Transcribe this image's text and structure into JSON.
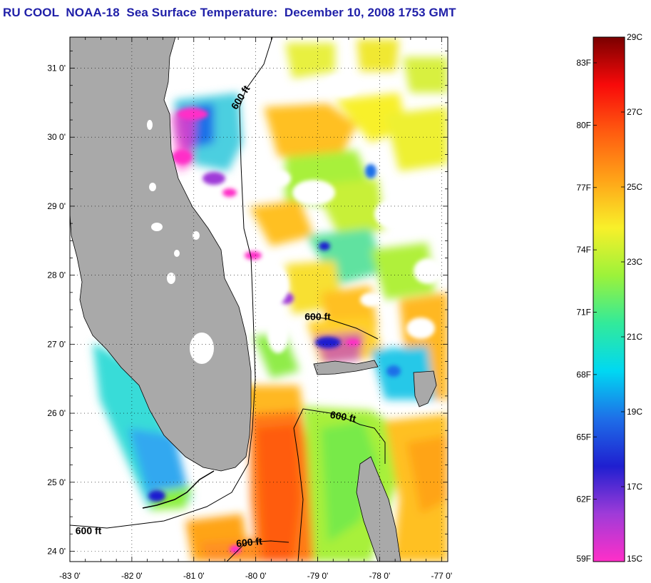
{
  "title": "RU COOL  NOAA-18  Sea Surface Temperature:  December 10, 2008 1753 GMT",
  "colors": {
    "title": "#1f1fa8",
    "land": "#a9a9a9",
    "cloud": "#ffffff"
  },
  "map": {
    "lon_range": [
      -83.0,
      -76.9
    ],
    "lat_range": [
      23.85,
      31.45
    ],
    "grid": "dotted",
    "lat_labels": [
      "31 0'",
      "30 0'",
      "29 0'",
      "28 0'",
      "27 0'",
      "26 0'",
      "25 0'",
      "24 0'"
    ],
    "lat_values": [
      31,
      30,
      29,
      28,
      27,
      26,
      25,
      24
    ],
    "lon_labels": [
      "-83 0'",
      "-82 0'",
      "-81 0'",
      "-80 0'",
      "-79 0'",
      "-78 0'",
      "-77 0'"
    ],
    "lon_values": [
      -83,
      -82,
      -81,
      -80,
      -79,
      -78,
      -77
    ]
  },
  "contours": [
    {
      "label": "600 ft",
      "lon": -80.2,
      "lat": 30.55,
      "angle": -58
    },
    {
      "label": "600 ft",
      "lon": -79.0,
      "lat": 27.35,
      "angle": 0
    },
    {
      "label": "600 ft",
      "lon": -78.6,
      "lat": 25.9,
      "angle": 10
    },
    {
      "label": "600 ft",
      "lon": -82.7,
      "lat": 24.25,
      "angle": 0
    },
    {
      "label": "600 ft",
      "lon": -80.1,
      "lat": 24.08,
      "angle": -6
    }
  ],
  "colorbar": {
    "celsius_labels": [
      "29C",
      "27C",
      "25C",
      "23C",
      "21C",
      "19C",
      "17C",
      "15C"
    ],
    "fahrenheit_labels": [
      "83F",
      "80F",
      "77F",
      "74F",
      "71F",
      "68F",
      "65F",
      "62F",
      "59F"
    ],
    "stops": [
      "#ff2fc8",
      "#9f3bd8",
      "#1f1fd0",
      "#1e6fe8",
      "#00d8f2",
      "#32ea9a",
      "#9cf23a",
      "#f8f02a",
      "#ffa418",
      "#ff5c10",
      "#f80a0a",
      "#7a0000"
    ]
  }
}
